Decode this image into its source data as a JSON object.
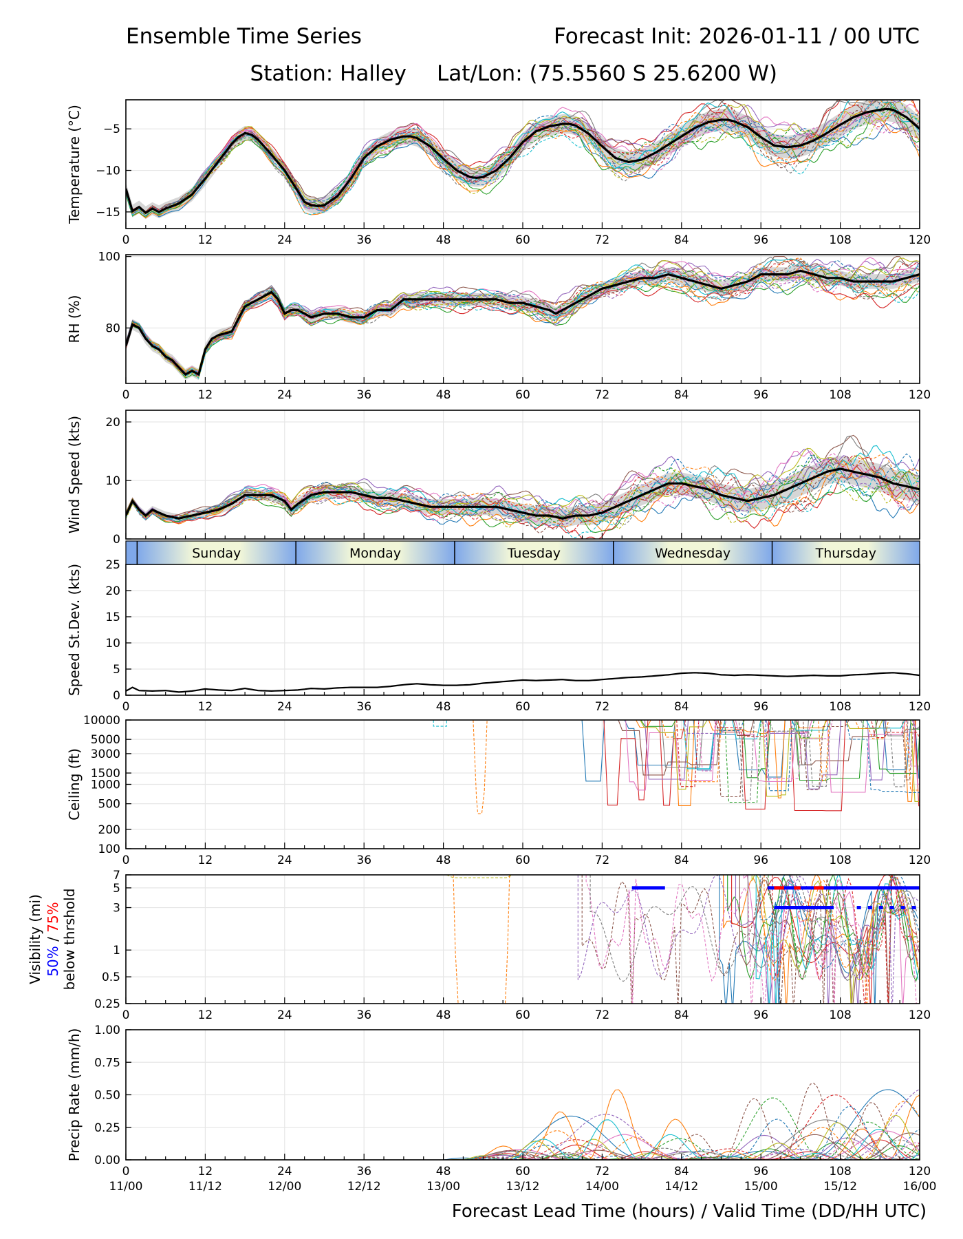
{
  "header": {
    "title_left": "Ensemble Time Series",
    "title_right": "Forecast Init: 2026-01-11 / 00 UTC",
    "station": "Station: Halley",
    "latlon": "Lat/Lon: (75.5560 S 25.6200 W)"
  },
  "colors": {
    "mean": "#000000",
    "spread": "#c8c8c8",
    "members": [
      "#1f77b4",
      "#ff7f0e",
      "#2ca02c",
      "#d62728",
      "#9467bd",
      "#8c564b",
      "#e377c2",
      "#7f7f7f",
      "#bcbd22",
      "#17becf"
    ],
    "vis50": "#0000ff",
    "vis75": "#ff0000",
    "day_band_light": "#f1f6d8",
    "day_band_dark": "#7fa8ea"
  },
  "xaxis": {
    "range": [
      0,
      120
    ],
    "ticks": [
      0,
      12,
      24,
      36,
      48,
      60,
      72,
      84,
      96,
      108,
      120
    ],
    "tick_labels": [
      "0",
      "12",
      "24",
      "36",
      "48",
      "60",
      "72",
      "84",
      "96",
      "108",
      "120"
    ],
    "valid_labels": [
      "11/00",
      "11/12",
      "12/00",
      "12/12",
      "13/00",
      "13/12",
      "14/00",
      "14/12",
      "15/00",
      "15/12",
      "16/00"
    ],
    "label": "Forecast Lead Time (hours) / Valid Time (DD/HH UTC)"
  },
  "day_band": {
    "days": [
      "Sunday",
      "Monday",
      "Tuesday",
      "Wednesday",
      "Thursday"
    ],
    "boundaries": [
      1.7,
      25.7,
      49.7,
      73.7,
      97.7
    ]
  },
  "chart_data": [
    {
      "id": "temperature",
      "type": "line",
      "ylabel": "Temperature (°C)",
      "ylim": [
        -17,
        -1.5
      ],
      "yticks": [
        -15,
        -10,
        -5
      ],
      "ytick_labels": [
        "−15",
        "−10",
        "−5"
      ],
      "mean": {
        "x": [
          0,
          1,
          2,
          3,
          4,
          5,
          6,
          8,
          10,
          12,
          14,
          16,
          17,
          18,
          19,
          20,
          22,
          24,
          26,
          27,
          28,
          29,
          30,
          32,
          34,
          36,
          38,
          40,
          42,
          43,
          44,
          46,
          48,
          50,
          52,
          53,
          54,
          56,
          58,
          60,
          62,
          64,
          66,
          67,
          68,
          70,
          72,
          74,
          76,
          78,
          80,
          82,
          84,
          86,
          88,
          90,
          91,
          92,
          94,
          96,
          98,
          100,
          102,
          104,
          106,
          108,
          110,
          112,
          114,
          115,
          116,
          118,
          120
        ],
        "y": [
          -12.2,
          -14.9,
          -14.4,
          -15.1,
          -14.6,
          -15.0,
          -14.6,
          -14.0,
          -12.9,
          -11.0,
          -8.9,
          -6.8,
          -6.0,
          -5.5,
          -5.7,
          -6.3,
          -8.1,
          -10.0,
          -12.5,
          -13.8,
          -14.2,
          -14.3,
          -14.2,
          -13.1,
          -11.0,
          -8.5,
          -7.1,
          -6.3,
          -5.9,
          -5.9,
          -6.1,
          -7.1,
          -8.6,
          -10.0,
          -10.8,
          -10.9,
          -10.8,
          -10.0,
          -8.5,
          -6.6,
          -5.3,
          -4.7,
          -4.4,
          -4.4,
          -4.6,
          -5.6,
          -7.1,
          -8.5,
          -9.0,
          -8.7,
          -7.9,
          -6.9,
          -5.9,
          -4.9,
          -4.2,
          -3.9,
          -3.9,
          -4.1,
          -4.8,
          -6.0,
          -7.0,
          -7.2,
          -7.0,
          -6.4,
          -5.5,
          -4.5,
          -3.6,
          -3.0,
          -2.7,
          -2.6,
          -2.7,
          -3.6,
          -5.0
        ]
      },
      "spread": 0.75,
      "members_amp": 1.3,
      "member_clip": [
        -17,
        -1.5
      ],
      "spread_growth": 1.0
    },
    {
      "id": "rh",
      "type": "line",
      "ylabel": "RH (%)",
      "ylim": [
        64.5,
        100.5
      ],
      "yticks": [
        80,
        100
      ],
      "ytick_labels": [
        "80",
        "100"
      ],
      "mean": {
        "x": [
          0,
          1,
          2,
          3,
          4,
          5,
          6,
          7,
          8,
          9,
          10,
          11,
          12,
          13,
          14,
          16,
          18,
          20,
          22,
          23,
          24,
          25,
          26,
          28,
          30,
          32,
          34,
          36,
          38,
          40,
          42,
          44,
          46,
          48,
          50,
          52,
          54,
          56,
          58,
          60,
          62,
          64,
          65,
          66,
          68,
          70,
          72,
          74,
          76,
          78,
          80,
          82,
          84,
          86,
          88,
          90,
          92,
          94,
          96,
          98,
          100,
          102,
          104,
          106,
          108,
          110,
          112,
          114,
          116,
          118,
          120
        ],
        "y": [
          75,
          81,
          80,
          77,
          75,
          74,
          72,
          71,
          69,
          67,
          68,
          67,
          74,
          77,
          78,
          79,
          86,
          88,
          90,
          88,
          84,
          85,
          85,
          83,
          84,
          84,
          83,
          83,
          85,
          85,
          88,
          88,
          88,
          88,
          88,
          88,
          88,
          88,
          87,
          87,
          86,
          85,
          84,
          85,
          87,
          89,
          91,
          92,
          93,
          94,
          94,
          95,
          94,
          93,
          92,
          91,
          92,
          93,
          95,
          95,
          95,
          96,
          95,
          94,
          94,
          93,
          93,
          93,
          93,
          94,
          95
        ]
      },
      "spread": 1.5,
      "members_amp": 2.6,
      "member_clip": [
        64.5,
        100
      ],
      "spread_growth": 0.4
    },
    {
      "id": "wind",
      "type": "line",
      "ylabel": "Wind Speed (kts)",
      "ylim": [
        0,
        22
      ],
      "yticks": [
        0,
        10,
        20
      ],
      "ytick_labels": [
        "0",
        "10",
        "20"
      ],
      "mean": {
        "x": [
          0,
          1,
          2,
          3,
          4,
          5,
          6,
          8,
          10,
          12,
          14,
          16,
          18,
          20,
          22,
          24,
          25,
          26,
          28,
          30,
          32,
          34,
          36,
          38,
          40,
          42,
          44,
          46,
          48,
          50,
          52,
          54,
          56,
          58,
          60,
          62,
          64,
          66,
          68,
          70,
          72,
          74,
          76,
          78,
          80,
          82,
          84,
          86,
          88,
          90,
          92,
          94,
          96,
          98,
          100,
          102,
          104,
          106,
          108,
          110,
          112,
          114,
          116,
          118,
          120
        ],
        "y": [
          4,
          6.5,
          5,
          4,
          5,
          4.5,
          4,
          3.5,
          4,
          4.5,
          5,
          6,
          7.5,
          7.5,
          7.5,
          6.5,
          5,
          6,
          7.5,
          8,
          8,
          8,
          7.5,
          7,
          7,
          6.5,
          6,
          5.5,
          5.5,
          5.5,
          5.5,
          5.5,
          5.5,
          5,
          4.5,
          4,
          4,
          3.5,
          4,
          4,
          4.5,
          5.5,
          6.5,
          7.5,
          8.5,
          9.5,
          9.5,
          9,
          8.5,
          7.5,
          7,
          6.5,
          7,
          7.5,
          8.5,
          9.5,
          10.5,
          11.5,
          12,
          11.5,
          11,
          10.5,
          9.5,
          9,
          8.5
        ]
      },
      "spread": 0.6,
      "members_amp": 1.6,
      "member_clip": [
        0,
        21
      ],
      "spread_growth": 3.0
    },
    {
      "id": "stddev",
      "type": "line",
      "ylabel": "Speed St.Dev. (kts)",
      "ylim": [
        0,
        25
      ],
      "yticks": [
        0,
        5,
        10,
        15,
        20,
        25
      ],
      "ytick_labels": [
        "0",
        "5",
        "10",
        "15",
        "20",
        "25"
      ],
      "mean": {
        "x": [
          0,
          1,
          2,
          4,
          6,
          8,
          10,
          12,
          14,
          16,
          18,
          20,
          22,
          24,
          26,
          28,
          30,
          32,
          34,
          36,
          38,
          40,
          42,
          44,
          46,
          48,
          50,
          52,
          54,
          56,
          58,
          60,
          62,
          64,
          66,
          68,
          70,
          72,
          74,
          76,
          78,
          80,
          82,
          84,
          86,
          88,
          90,
          92,
          94,
          96,
          98,
          100,
          102,
          104,
          106,
          108,
          110,
          112,
          114,
          116,
          118,
          120
        ],
        "y": [
          0.8,
          1.5,
          0.9,
          0.8,
          0.9,
          0.6,
          0.8,
          1.2,
          1.0,
          0.9,
          1.3,
          0.9,
          0.8,
          0.9,
          1.0,
          1.3,
          1.2,
          1.4,
          1.5,
          1.5,
          1.5,
          1.7,
          2.0,
          2.2,
          2.0,
          1.9,
          1.9,
          2.0,
          2.3,
          2.5,
          2.7,
          2.9,
          2.8,
          2.9,
          3.0,
          2.8,
          2.8,
          3.0,
          3.2,
          3.4,
          3.5,
          3.7,
          3.9,
          4.2,
          4.3,
          4.2,
          3.9,
          3.8,
          3.9,
          3.8,
          3.7,
          3.6,
          3.7,
          3.8,
          3.7,
          3.7,
          3.9,
          4.0,
          4.2,
          4.3,
          4.1,
          3.8
        ]
      },
      "spread": 0,
      "members_amp": 0,
      "member_clip": [
        0,
        25
      ],
      "spread_growth": 0
    },
    {
      "id": "ceiling",
      "type": "line",
      "ylabel": "Ceiling (ft)",
      "ylim": [
        100,
        10000
      ],
      "yscale": "log",
      "yticks": [
        100,
        200,
        500,
        1000,
        1500,
        3000,
        5000,
        10000
      ],
      "ytick_labels": [
        "100",
        "200",
        "500",
        "1000",
        "1500",
        "3000",
        "5000",
        "10000"
      ]
    },
    {
      "id": "visibility",
      "type": "line",
      "ylabel": "Visibility (mi)",
      "ylabel_blue": "50%",
      "ylabel_sep": "/",
      "ylabel_red": "75%",
      "ylabel_sub": "below thrshold",
      "ylim": [
        0.25,
        7
      ],
      "yscale": "log",
      "yticks": [
        0.25,
        0.5,
        1,
        3,
        5,
        7
      ],
      "ytick_labels": [
        "0.25",
        "0.5",
        "1",
        "3",
        "5",
        "7"
      ],
      "threshold50_5mi": [
        [
          76.5,
          81.5
        ],
        [
          97,
          120
        ]
      ],
      "threshold75_5mi": [
        [
          98,
          99.5
        ],
        [
          101,
          102
        ],
        [
          104,
          105.5
        ]
      ],
      "threshold50_3mi": [
        [
          98,
          107
        ],
        [
          110.5,
          120
        ]
      ]
    },
    {
      "id": "precip",
      "type": "line",
      "ylabel": "Precip Rate (mm/h)",
      "ylim": [
        0,
        1
      ],
      "yticks": [
        0,
        0.25,
        0.5,
        0.75,
        1
      ],
      "ytick_labels": [
        "0.00",
        "0.25",
        "0.50",
        "0.75",
        "1.00"
      ]
    }
  ]
}
